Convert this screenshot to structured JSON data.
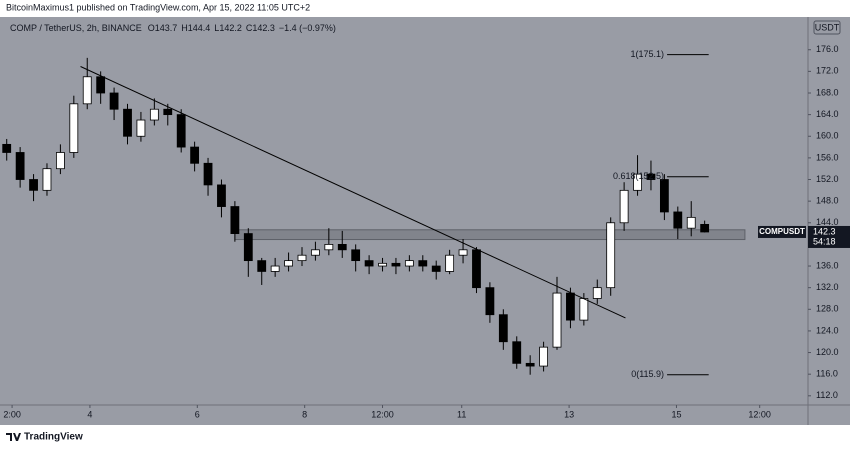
{
  "header": {
    "text": "BitcoinMaximus1 published on TradingView.com, Apr 15, 2022 11:05 UTC+2"
  },
  "chart_data": {
    "type": "candlestick",
    "title": "COMP / TetherUS, 2h, BINANCE",
    "legend": [
      {
        "label": "O",
        "value": 143.7
      },
      {
        "label": "H",
        "value": 144.4
      },
      {
        "label": "L",
        "value": 142.2
      },
      {
        "label": "C",
        "value": 142.3
      }
    ],
    "change": "−1.4 (−0.97%)",
    "currency": "USDT",
    "x": [
      0,
      1,
      2,
      3,
      4,
      5,
      6,
      7,
      8,
      9,
      10,
      11,
      12,
      13,
      14,
      15,
      16,
      17,
      18,
      19,
      20,
      21,
      22,
      23,
      24,
      25,
      26,
      27,
      28,
      29,
      30,
      31,
      32,
      33,
      34,
      35,
      36,
      37,
      38,
      39,
      40,
      41,
      42,
      43,
      44,
      45,
      46,
      47,
      48,
      49,
      50,
      51,
      52
    ],
    "open": [
      158.5,
      157,
      152,
      150,
      154,
      157,
      166,
      171,
      168,
      165,
      160,
      163,
      165,
      164,
      158,
      155,
      151,
      147,
      142,
      137,
      135,
      136,
      137,
      138,
      139,
      140,
      139,
      137,
      136,
      136.5,
      136,
      137,
      136,
      135,
      138,
      139,
      132,
      127,
      122,
      118,
      117.5,
      121,
      131,
      126,
      130,
      132,
      144,
      150,
      153,
      152,
      146,
      143,
      143.7
    ],
    "high": [
      159.5,
      158,
      153,
      155,
      158.5,
      167.5,
      174.5,
      172,
      169,
      166,
      164.5,
      167,
      166,
      165,
      159,
      156,
      152,
      148,
      143,
      137.5,
      137.5,
      138.5,
      139.5,
      140.5,
      143,
      142.5,
      140,
      138,
      137.5,
      137.5,
      138,
      138,
      137,
      139,
      141,
      139.5,
      133,
      128,
      123,
      119.5,
      122,
      134,
      132,
      131,
      133.5,
      145,
      151.5,
      156.5,
      155.5,
      153,
      147,
      148,
      144.4
    ],
    "low": [
      155.5,
      150.5,
      148,
      149,
      153,
      156,
      165,
      166,
      163,
      158.5,
      159,
      162,
      162,
      157,
      153.5,
      149,
      145,
      140.5,
      134,
      132.5,
      134,
      135,
      136,
      137,
      138,
      137.5,
      135,
      134.5,
      135,
      134.5,
      135,
      135,
      133.5,
      134.5,
      136.5,
      131,
      125.5,
      120.5,
      117,
      115.9,
      116.5,
      120.5,
      124.5,
      125,
      129,
      130.5,
      142.5,
      149,
      150,
      144.5,
      141,
      141.5,
      142.2
    ],
    "close": [
      157,
      152,
      150,
      154,
      157,
      166,
      171,
      168,
      165,
      160,
      163,
      165,
      164,
      158,
      155,
      151,
      147,
      142,
      137,
      135,
      136,
      137,
      138,
      139,
      140,
      139,
      137,
      136,
      136.5,
      136,
      137,
      136,
      135,
      138,
      139,
      132,
      127,
      122,
      118,
      117.5,
      121,
      131,
      126,
      130,
      132,
      144,
      150,
      153,
      152,
      146,
      143,
      145,
      142.3
    ],
    "up_color": "#ffffff",
    "down_color": "#000000",
    "background": "#999ca5",
    "xlim": [
      -0.5,
      59.7
    ],
    "xticks": [
      {
        "value": 0.4,
        "label": "2:00"
      },
      {
        "value": 6.2,
        "label": "4"
      },
      {
        "value": 14.2,
        "label": "6"
      },
      {
        "value": 22.2,
        "label": "8"
      },
      {
        "value": 28.0,
        "label": "12:00"
      },
      {
        "value": 33.9,
        "label": "11"
      },
      {
        "value": 41.9,
        "label": "13"
      },
      {
        "value": 49.9,
        "label": "15"
      },
      {
        "value": 56.1,
        "label": "12:00"
      }
    ],
    "ylim": [
      110.3,
      181.5
    ],
    "yticks": [
      {
        "value": 112,
        "label": "112.0"
      },
      {
        "value": 116,
        "label": "116.0"
      },
      {
        "value": 120,
        "label": "120.0"
      },
      {
        "value": 124,
        "label": "124.0"
      },
      {
        "value": 128,
        "label": "128.0"
      },
      {
        "value": 132,
        "label": "132.0"
      },
      {
        "value": 136,
        "label": "136.0"
      },
      {
        "value": 140,
        "label": "140.0"
      },
      {
        "value": 144,
        "label": "144.0"
      },
      {
        "value": 148,
        "label": "148.0"
      },
      {
        "value": 152,
        "label": "152.0"
      },
      {
        "value": 156,
        "label": "156.0"
      },
      {
        "value": 160,
        "label": "160.0"
      },
      {
        "value": 164,
        "label": "164.0"
      },
      {
        "value": 168,
        "label": "168.0"
      },
      {
        "value": 172,
        "label": "172.0"
      },
      {
        "value": 176,
        "label": "176.0"
      }
    ],
    "trendline": {
      "x": [
        5.5,
        46.1
      ],
      "y": [
        172.9,
        126.4
      ]
    },
    "zone": {
      "x": [
        17,
        55
      ],
      "y": [
        140.9,
        142.7
      ]
    },
    "fib_levels": [
      {
        "value": 175.1,
        "label": "1(175.1)"
      },
      {
        "value": 152.5,
        "label": "0.618(152.5)"
      },
      {
        "value": 115.9,
        "label": "0(115.9)"
      }
    ],
    "fib_x": [
      49.2,
      52.3
    ],
    "last_price": {
      "symbol": "COMPUSDT",
      "value": 142.3,
      "countdown": "54:18"
    }
  },
  "footer": {
    "brand": "TradingView"
  }
}
